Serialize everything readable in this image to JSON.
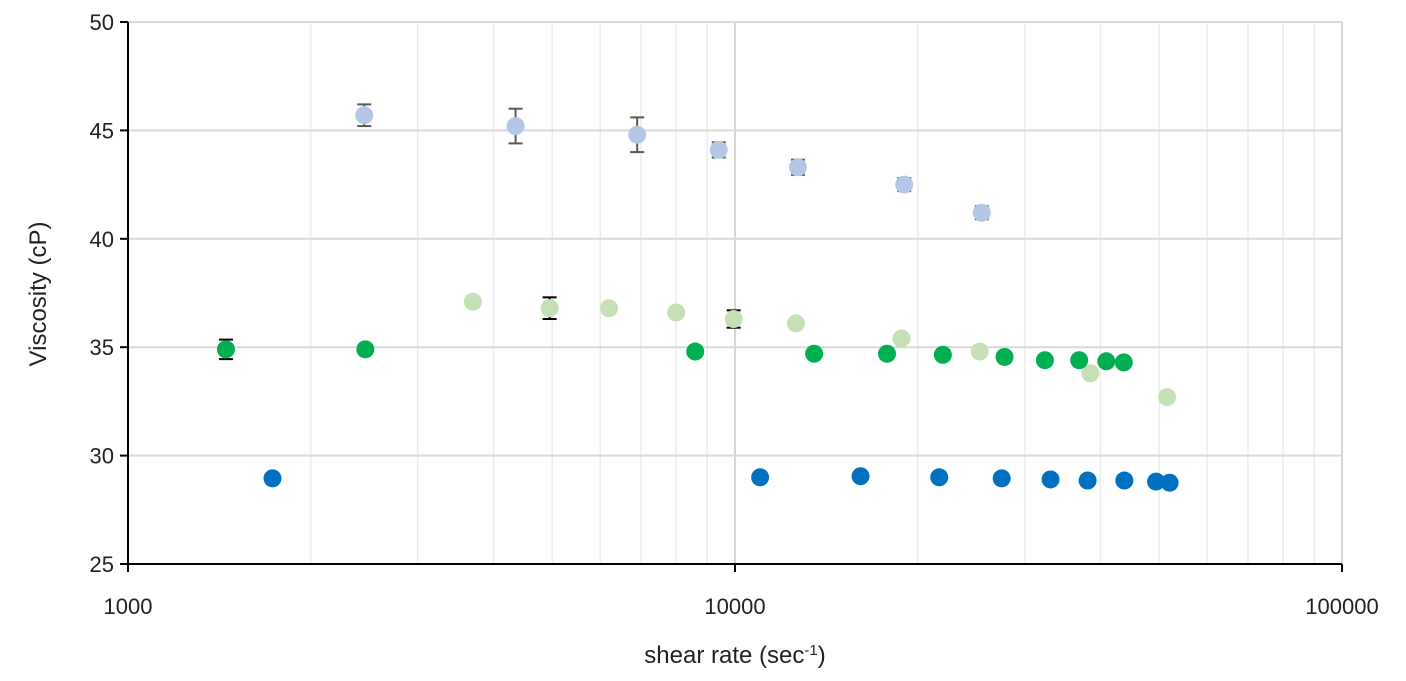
{
  "chart_data": {
    "type": "scatter",
    "title": "",
    "xlabel": "shear rate (sec",
    "xlabel_sup": "-1",
    "xlabel_close": ")",
    "ylabel": "Viscosity (cP)",
    "x_scale": "log",
    "xlim": [
      1000,
      100000
    ],
    "ylim": [
      25,
      50
    ],
    "x_ticks": [
      1000,
      10000,
      100000
    ],
    "x_tick_labels": [
      "1000",
      "10000",
      "100000"
    ],
    "y_ticks": [
      25,
      30,
      35,
      40,
      45,
      50
    ],
    "y_tick_labels": [
      "25",
      "30",
      "35",
      "40",
      "45",
      "50"
    ],
    "grid": true,
    "legend": "none",
    "series": [
      {
        "color": "#b4c7e7",
        "error_color": "#595959",
        "points": [
          {
            "x": 2450,
            "y": 45.7,
            "err": 0.5
          },
          {
            "x": 4350,
            "y": 45.2,
            "err": 0.8
          },
          {
            "x": 6900,
            "y": 44.8,
            "err": 0.8
          },
          {
            "x": 9400,
            "y": 44.1,
            "err": 0.35
          },
          {
            "x": 12700,
            "y": 43.3,
            "err": 0.35
          },
          {
            "x": 19000,
            "y": 42.5,
            "err": 0.3
          },
          {
            "x": 25500,
            "y": 41.2,
            "err": 0.3
          }
        ]
      },
      {
        "color": "#c5e0b4",
        "error_color": "#000000",
        "points": [
          {
            "x": 3700,
            "y": 37.1
          },
          {
            "x": 4950,
            "y": 36.8,
            "err": 0.5
          },
          {
            "x": 6200,
            "y": 36.8
          },
          {
            "x": 8000,
            "y": 36.6
          },
          {
            "x": 9950,
            "y": 36.3,
            "err": 0.4
          },
          {
            "x": 12600,
            "y": 36.1
          },
          {
            "x": 18800,
            "y": 35.4
          },
          {
            "x": 25300,
            "y": 34.8
          },
          {
            "x": 38500,
            "y": 33.8
          },
          {
            "x": 51500,
            "y": 32.7
          }
        ]
      },
      {
        "color": "#00b050",
        "error_color": "#000000",
        "points": [
          {
            "x": 1450,
            "y": 34.9,
            "err": 0.45
          },
          {
            "x": 2460,
            "y": 34.9
          },
          {
            "x": 8600,
            "y": 34.8
          },
          {
            "x": 13500,
            "y": 34.7
          },
          {
            "x": 17800,
            "y": 34.7
          },
          {
            "x": 22000,
            "y": 34.65
          },
          {
            "x": 27800,
            "y": 34.55
          },
          {
            "x": 32400,
            "y": 34.4
          },
          {
            "x": 36900,
            "y": 34.4
          },
          {
            "x": 40900,
            "y": 34.35
          },
          {
            "x": 43700,
            "y": 34.3
          }
        ]
      },
      {
        "color": "#0070c0",
        "error_color": "#000000",
        "points": [
          {
            "x": 1730,
            "y": 28.95
          },
          {
            "x": 11000,
            "y": 29.0
          },
          {
            "x": 16100,
            "y": 29.05
          },
          {
            "x": 21700,
            "y": 29.0
          },
          {
            "x": 27500,
            "y": 28.95
          },
          {
            "x": 33100,
            "y": 28.9
          },
          {
            "x": 38100,
            "y": 28.85
          },
          {
            "x": 43800,
            "y": 28.85
          },
          {
            "x": 49400,
            "y": 28.8
          },
          {
            "x": 52000,
            "y": 28.75
          }
        ]
      }
    ]
  }
}
